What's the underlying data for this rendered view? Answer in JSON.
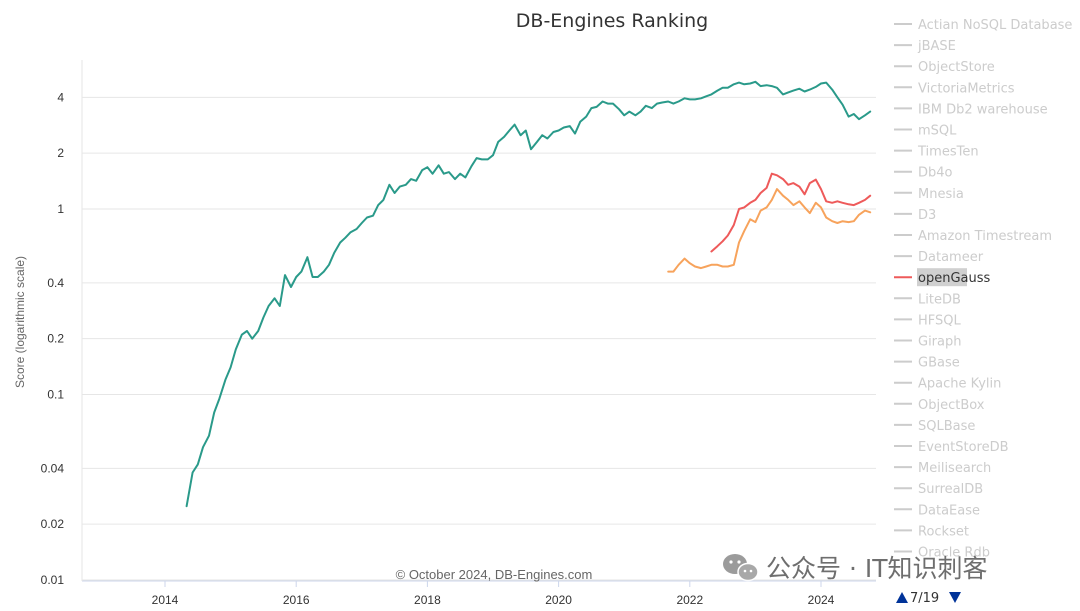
{
  "chart_data": {
    "type": "line",
    "title": "DB-Engines Ranking",
    "ylabel": "Score (logarithmic scale)",
    "y_scale": "log",
    "ylim": [
      0.01,
      6
    ],
    "yticks": [
      0.01,
      0.02,
      0.04,
      0.1,
      0.2,
      0.4,
      1,
      2,
      4
    ],
    "ytick_labels": [
      "0.01",
      "0.02",
      "0.04",
      "0.1",
      "0.2",
      "0.4",
      "1",
      "2",
      "4"
    ],
    "xlim": [
      2013.2,
      2024.8
    ],
    "xticks": [
      2014,
      2016,
      2018,
      2020,
      2022,
      2024
    ],
    "xtick_labels": [
      "2014",
      "2016",
      "2018",
      "2020",
      "2022",
      "2024"
    ],
    "credit": "© October 2024, DB-Engines.com",
    "grid": true,
    "series": [
      {
        "color": "#2a9a8a",
        "x": [
          2014.33,
          2014.42,
          2014.5,
          2014.58,
          2014.67,
          2014.75,
          2014.83,
          2014.92,
          2015.0,
          2015.08,
          2015.17,
          2015.25,
          2015.33,
          2015.42,
          2015.5,
          2015.58,
          2015.67,
          2015.75,
          2015.83,
          2015.92,
          2016.0,
          2016.08,
          2016.17,
          2016.25,
          2016.33,
          2016.42,
          2016.5,
          2016.58,
          2016.67,
          2016.75,
          2016.83,
          2016.92,
          2017.0,
          2017.08,
          2017.17,
          2017.25,
          2017.33,
          2017.42,
          2017.5,
          2017.58,
          2017.67,
          2017.75,
          2017.83,
          2017.92,
          2018.0,
          2018.08,
          2018.17,
          2018.25,
          2018.33,
          2018.42,
          2018.5,
          2018.58,
          2018.67,
          2018.75,
          2018.83,
          2018.92,
          2019.0,
          2019.08,
          2019.17,
          2019.25,
          2019.33,
          2019.42,
          2019.5,
          2019.58,
          2019.67,
          2019.75,
          2019.83,
          2019.92,
          2020.0,
          2020.08,
          2020.17,
          2020.25,
          2020.33,
          2020.42,
          2020.5,
          2020.58,
          2020.67,
          2020.75,
          2020.83,
          2020.92,
          2021.0,
          2021.08,
          2021.17,
          2021.25,
          2021.33,
          2021.42,
          2021.5,
          2021.58,
          2021.67,
          2021.75,
          2021.83,
          2021.92,
          2022.0,
          2022.08,
          2022.17,
          2022.25,
          2022.33,
          2022.42,
          2022.5,
          2022.58,
          2022.67,
          2022.75,
          2022.83,
          2022.92,
          2023.0,
          2023.08,
          2023.17,
          2023.25,
          2023.33,
          2023.42,
          2023.5,
          2023.58,
          2023.67,
          2023.75,
          2023.83,
          2023.92,
          2024.0,
          2024.08,
          2024.17,
          2024.25,
          2024.33,
          2024.42,
          2024.5,
          2024.58,
          2024.67,
          2024.75
        ],
        "values": [
          0.025,
          0.038,
          0.042,
          0.052,
          0.06,
          0.08,
          0.095,
          0.12,
          0.14,
          0.175,
          0.21,
          0.22,
          0.2,
          0.22,
          0.26,
          0.3,
          0.33,
          0.3,
          0.44,
          0.38,
          0.43,
          0.46,
          0.55,
          0.43,
          0.43,
          0.46,
          0.5,
          0.58,
          0.66,
          0.7,
          0.75,
          0.78,
          0.84,
          0.9,
          0.92,
          1.05,
          1.12,
          1.35,
          1.22,
          1.32,
          1.35,
          1.45,
          1.42,
          1.62,
          1.68,
          1.55,
          1.72,
          1.55,
          1.58,
          1.45,
          1.55,
          1.48,
          1.7,
          1.88,
          1.85,
          1.85,
          1.95,
          2.3,
          2.45,
          2.65,
          2.85,
          2.5,
          2.65,
          2.1,
          2.3,
          2.5,
          2.4,
          2.6,
          2.65,
          2.75,
          2.8,
          2.55,
          2.95,
          3.15,
          3.5,
          3.55,
          3.8,
          3.7,
          3.7,
          3.45,
          3.2,
          3.35,
          3.2,
          3.35,
          3.6,
          3.5,
          3.7,
          3.75,
          3.8,
          3.7,
          3.8,
          3.95,
          3.9,
          3.9,
          3.95,
          4.05,
          4.15,
          4.35,
          4.5,
          4.5,
          4.7,
          4.8,
          4.7,
          4.75,
          4.85,
          4.6,
          4.65,
          4.6,
          4.5,
          4.15,
          4.25,
          4.35,
          4.45,
          4.3,
          4.4,
          4.55,
          4.75,
          4.8,
          4.4,
          4.0,
          3.65,
          3.15,
          3.25,
          3.05,
          3.2,
          3.35
        ]
      },
      {
        "color": "#ee5a5a",
        "x": [
          2022.33,
          2022.42,
          2022.5,
          2022.58,
          2022.67,
          2022.75,
          2022.83,
          2022.92,
          2023.0,
          2023.08,
          2023.17,
          2023.25,
          2023.33,
          2023.42,
          2023.5,
          2023.58,
          2023.67,
          2023.75,
          2023.83,
          2023.92,
          2024.0,
          2024.08,
          2024.17,
          2024.25,
          2024.33,
          2024.42,
          2024.5,
          2024.58,
          2024.67,
          2024.75
        ],
        "values": [
          0.59,
          0.63,
          0.67,
          0.72,
          0.82,
          1.0,
          1.02,
          1.08,
          1.12,
          1.22,
          1.3,
          1.55,
          1.52,
          1.45,
          1.35,
          1.38,
          1.32,
          1.2,
          1.38,
          1.44,
          1.28,
          1.1,
          1.08,
          1.1,
          1.08,
          1.06,
          1.05,
          1.08,
          1.12,
          1.18
        ]
      },
      {
        "color": "#f7a35c",
        "x": [
          2021.67,
          2021.75,
          2021.83,
          2021.92,
          2022.0,
          2022.08,
          2022.17,
          2022.25,
          2022.33,
          2022.42,
          2022.5,
          2022.58,
          2022.67,
          2022.75,
          2022.83,
          2022.92,
          2023.0,
          2023.08,
          2023.17,
          2023.25,
          2023.33,
          2023.42,
          2023.5,
          2023.58,
          2023.67,
          2023.75,
          2023.83,
          2023.92,
          2024.0,
          2024.08,
          2024.17,
          2024.25,
          2024.33,
          2024.42,
          2024.5,
          2024.58,
          2024.67,
          2024.75
        ],
        "values": [
          0.46,
          0.46,
          0.5,
          0.54,
          0.51,
          0.49,
          0.48,
          0.49,
          0.5,
          0.5,
          0.49,
          0.49,
          0.5,
          0.66,
          0.76,
          0.88,
          0.85,
          0.98,
          1.02,
          1.12,
          1.28,
          1.18,
          1.12,
          1.05,
          1.1,
          1.02,
          0.95,
          1.08,
          1.02,
          0.9,
          0.86,
          0.84,
          0.86,
          0.85,
          0.86,
          0.93,
          0.98,
          0.96
        ]
      }
    ]
  },
  "legend": {
    "items": [
      {
        "label": "Actian NoSQL Database",
        "active": false,
        "color": "#cccccc"
      },
      {
        "label": "jBASE",
        "active": false,
        "color": "#cccccc"
      },
      {
        "label": "ObjectStore",
        "active": false,
        "color": "#cccccc"
      },
      {
        "label": "VictoriaMetrics",
        "active": false,
        "color": "#cccccc"
      },
      {
        "label": "IBM Db2 warehouse",
        "active": false,
        "color": "#cccccc"
      },
      {
        "label": "mSQL",
        "active": false,
        "color": "#cccccc"
      },
      {
        "label": "TimesTen",
        "active": false,
        "color": "#cccccc"
      },
      {
        "label": "Db4o",
        "active": false,
        "color": "#cccccc"
      },
      {
        "label": "Mnesia",
        "active": false,
        "color": "#cccccc"
      },
      {
        "label": "D3",
        "active": false,
        "color": "#cccccc"
      },
      {
        "label": "Amazon Timestream",
        "active": false,
        "color": "#cccccc"
      },
      {
        "label": "Datameer",
        "active": false,
        "color": "#cccccc"
      },
      {
        "label": "openGauss",
        "active": true,
        "color": "#ee5a5a",
        "highlighted": true
      },
      {
        "label": "LiteDB",
        "active": false,
        "color": "#cccccc"
      },
      {
        "label": "HFSQL",
        "active": false,
        "color": "#cccccc"
      },
      {
        "label": "Giraph",
        "active": false,
        "color": "#cccccc"
      },
      {
        "label": "GBase",
        "active": false,
        "color": "#cccccc"
      },
      {
        "label": "Apache Kylin",
        "active": false,
        "color": "#cccccc"
      },
      {
        "label": "ObjectBox",
        "active": false,
        "color": "#cccccc"
      },
      {
        "label": "SQLBase",
        "active": false,
        "color": "#cccccc"
      },
      {
        "label": "EventStoreDB",
        "active": false,
        "color": "#cccccc"
      },
      {
        "label": "Meilisearch",
        "active": false,
        "color": "#cccccc"
      },
      {
        "label": "SurrealDB",
        "active": false,
        "color": "#cccccc"
      },
      {
        "label": "DataEase",
        "active": false,
        "color": "#cccccc"
      },
      {
        "label": "Rockset",
        "active": false,
        "color": "#cccccc"
      },
      {
        "label": "Oracle Rdb",
        "active": false,
        "color": "#cccccc"
      }
    ],
    "pager": "7/19"
  },
  "watermark": {
    "text": "公众号 · IT知识刺客",
    "icon": "wechat-icon"
  }
}
